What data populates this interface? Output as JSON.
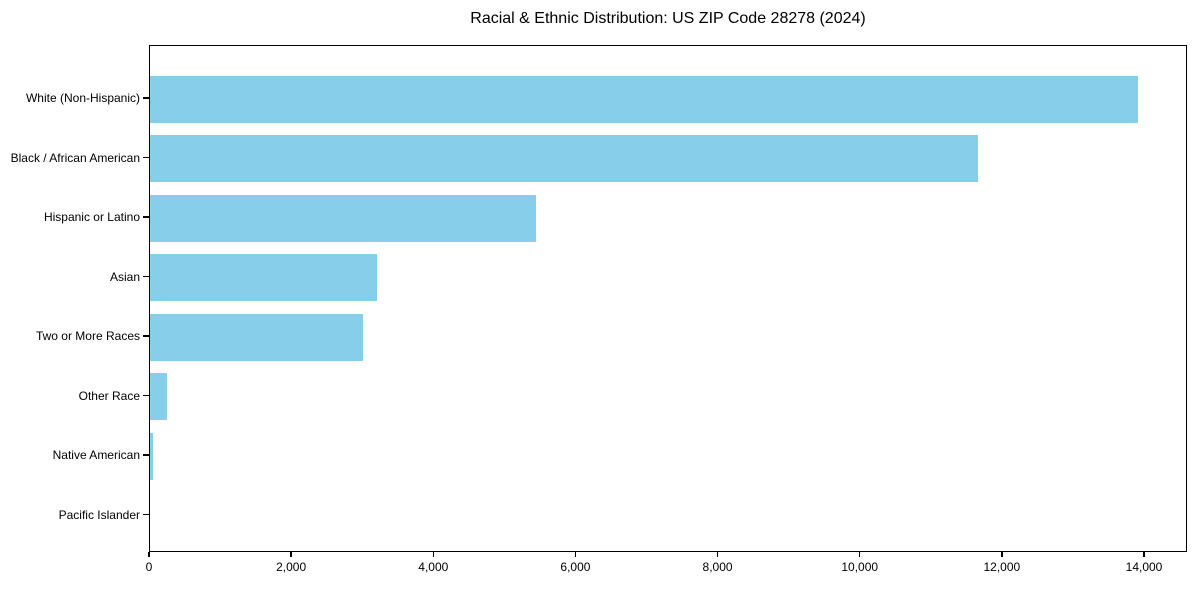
{
  "chart_data": {
    "type": "bar",
    "orientation": "horizontal",
    "title": "Racial & Ethnic Distribution: US ZIP Code 28278 (2024)",
    "categories": [
      "White (Non-Hispanic)",
      "Black / African American",
      "Hispanic or Latino",
      "Asian",
      "Two or More Races",
      "Other Race",
      "Native American",
      "Pacific Islander"
    ],
    "values": [
      13900,
      11650,
      5430,
      3200,
      3000,
      240,
      45,
      0
    ],
    "xlabel": "",
    "ylabel": "",
    "xlim": [
      0,
      14605
    ],
    "x_ticks": [
      0,
      2000,
      4000,
      6000,
      8000,
      10000,
      12000,
      14000
    ],
    "x_tick_labels": [
      "0",
      "2,000",
      "4,000",
      "6,000",
      "8,000",
      "10,000",
      "12,000",
      "14,000"
    ],
    "bar_color": "#87CEEB",
    "spine_color": "#000000",
    "background_color": "#ffffff",
    "grid": false,
    "legend": null
  }
}
